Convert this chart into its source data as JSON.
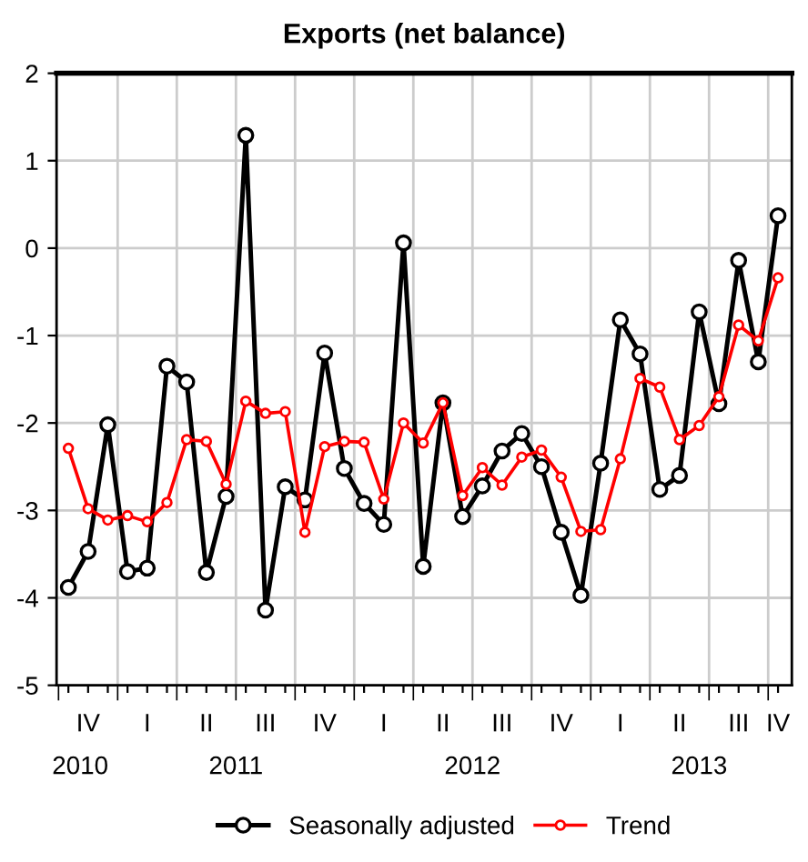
{
  "chart_data": {
    "type": "line",
    "title": "Exports (net balance)",
    "categories": [
      null,
      "IV",
      null,
      null,
      "I",
      null,
      null,
      "II",
      null,
      null,
      "III",
      null,
      null,
      "IV",
      null,
      null,
      "I",
      null,
      null,
      "II",
      null,
      null,
      "III",
      null,
      null,
      "IV",
      null,
      null,
      "I",
      null,
      null,
      "II",
      null,
      null,
      "III",
      null,
      "IV"
    ],
    "series": [
      {
        "name": "Seasonally adjusted",
        "color": "#000000",
        "values": [
          -3.88,
          -3.47,
          -2.02,
          -3.7,
          -3.66,
          -1.35,
          -1.53,
          -3.71,
          -2.84,
          1.29,
          -4.14,
          -2.73,
          -2.88,
          -1.2,
          -2.52,
          -2.92,
          -3.16,
          0.06,
          -3.64,
          -1.77,
          -3.07,
          -2.72,
          -2.32,
          -2.12,
          -2.5,
          -3.25,
          -3.97,
          -2.46,
          -0.82,
          -1.21,
          -2.76,
          -2.6,
          -0.73,
          -1.78,
          -0.14,
          -1.3,
          0.37
        ]
      },
      {
        "name": "Trend",
        "color": "#ff0000",
        "values": [
          -2.29,
          -2.98,
          -3.11,
          -3.06,
          -3.13,
          -2.91,
          -2.19,
          -2.21,
          -2.7,
          -1.75,
          -1.89,
          -1.87,
          -3.25,
          -2.27,
          -2.21,
          -2.22,
          -2.87,
          -2.0,
          -2.23,
          -1.77,
          -2.83,
          -2.51,
          -2.71,
          -2.39,
          -2.31,
          -2.62,
          -3.24,
          -3.22,
          -2.41,
          -1.49,
          -1.59,
          -2.19,
          -2.03,
          -1.7,
          -0.88,
          -1.06,
          -0.34
        ]
      }
    ],
    "annotations": [
      "2010",
      "2011",
      "2012",
      "2013"
    ],
    "marker": "circle",
    "line_style": "solid",
    "ylim": [
      -5,
      2
    ],
    "yticks": [
      -5,
      -4,
      -3,
      -2,
      -1,
      0,
      1,
      2
    ],
    "grid": true,
    "legend": "bottom"
  }
}
